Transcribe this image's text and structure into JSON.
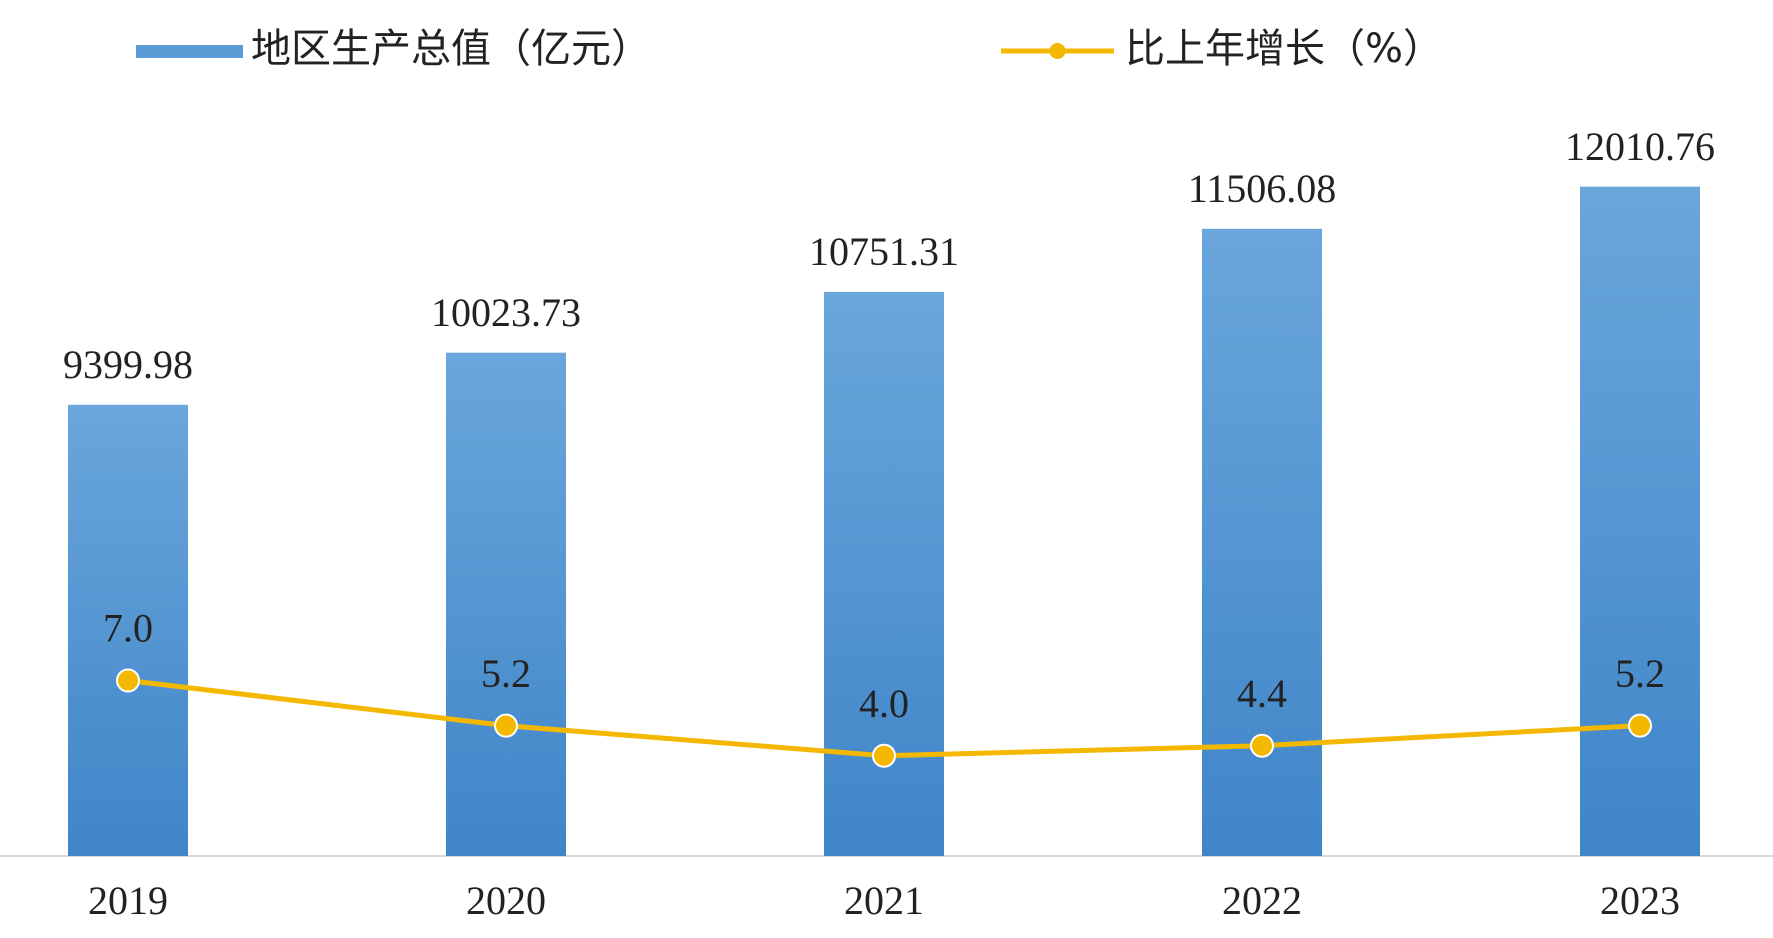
{
  "chart_data": {
    "type": "bar-line",
    "categories": [
      "2019",
      "2020",
      "2021",
      "2022",
      "2023"
    ],
    "series": [
      {
        "name": "地区生产总值（亿元）",
        "type": "bar",
        "color": "#5b9bd5",
        "values": [
          9399.98,
          10023.73,
          10751.31,
          11506.08,
          12010.76
        ]
      },
      {
        "name": "比上年增长（%）",
        "type": "line",
        "axis": "y2",
        "color": "#f5b800",
        "values": [
          7.0,
          5.2,
          4.0,
          4.4,
          5.2
        ],
        "value_labels": [
          "7.0",
          "5.2",
          "4.0",
          "4.4",
          "5.2"
        ]
      }
    ],
    "ylim": [
      4000,
      13000
    ],
    "y2lim": [
      0,
      30
    ]
  }
}
